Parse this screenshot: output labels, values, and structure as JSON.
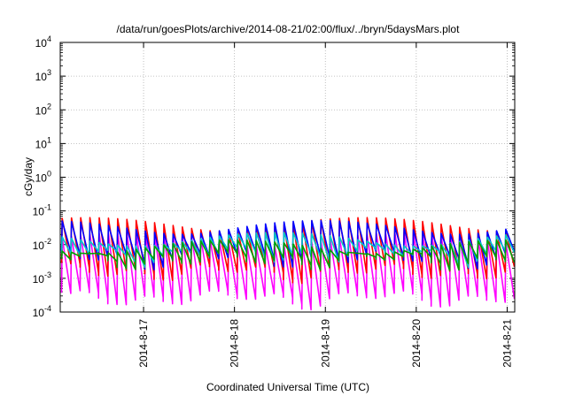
{
  "chart_data": {
    "type": "line",
    "title": "/data/run/goesPlots/archive/2014-08-21/02:00/flux/../bryn/5daysMars.plot",
    "xlabel": "Coordinated Universal Time (UTC)",
    "ylabel": "cGy/day",
    "xlim": [
      "2014-08-16T02:00",
      "2014-08-21T02:00"
    ],
    "ylim": [
      0.0001,
      10000
    ],
    "yscale": "log",
    "grid": true,
    "x_ticks": [
      {
        "label": "2014-8-17",
        "value": "2014-08-17T00:00"
      },
      {
        "label": "2014-8-18",
        "value": "2014-08-18T00:00"
      },
      {
        "label": "2014-8-19",
        "value": "2014-08-19T00:00"
      },
      {
        "label": "2014-8-20",
        "value": "2014-08-20T00:00"
      },
      {
        "label": "2014-8-21",
        "value": "2014-08-21T00:00"
      }
    ],
    "y_ticks": [
      {
        "base": "10",
        "exp": "-4"
      },
      {
        "base": "10",
        "exp": "-3"
      },
      {
        "base": "10",
        "exp": "-2"
      },
      {
        "base": "10",
        "exp": "-1"
      },
      {
        "base": "10",
        "exp": "0"
      },
      {
        "base": "10",
        "exp": "1"
      },
      {
        "base": "10",
        "exp": "2"
      },
      {
        "base": "10",
        "exp": "3"
      },
      {
        "base": "10",
        "exp": "4"
      }
    ],
    "pattern": {
      "cycle_hours": 2.44,
      "cycles": 49
    },
    "series": [
      {
        "color": "#ff00ff",
        "peak": 0.02,
        "trough": 0.0003
      },
      {
        "color": "#ff0000",
        "peak": 0.055,
        "trough": 0.0018
      },
      {
        "color": "#0000ff",
        "peak": 0.045,
        "trough": 0.0045
      },
      {
        "color": "#00c8c8",
        "peak": 0.02,
        "trough": 0.0055
      },
      {
        "color": "#00a000",
        "peak": 0.012,
        "trough": 0.004
      }
    ]
  }
}
